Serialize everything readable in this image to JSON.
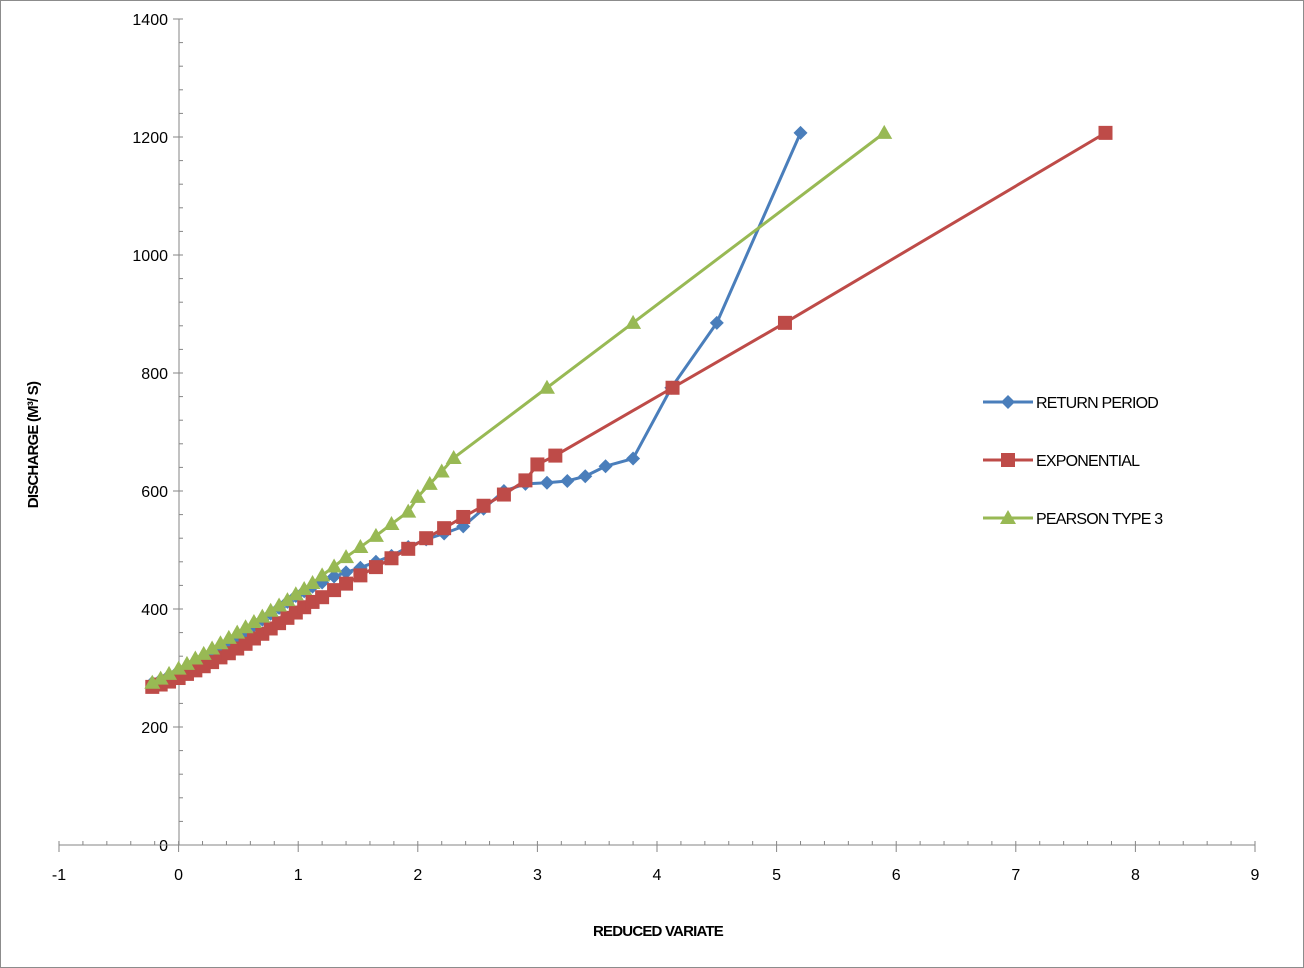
{
  "chart_data": {
    "type": "line",
    "title": "",
    "xlabel": "REDUCED VARIATE",
    "ylabel": "DISCHARGE (M³/ S)",
    "xlim": [
      -1,
      9
    ],
    "ylim": [
      0,
      1400
    ],
    "x_ticks": [
      -1,
      0,
      1,
      2,
      3,
      4,
      5,
      6,
      7,
      8,
      9
    ],
    "y_ticks": [
      0,
      200,
      400,
      600,
      800,
      1000,
      1200,
      1400
    ],
    "grid": false,
    "legend_position": "right",
    "series": [
      {
        "name": "RETURN PERIOD",
        "color": "#4a7ebb",
        "marker": "diamond",
        "x": [
          -0.22,
          -0.15,
          -0.08,
          0.0,
          0.07,
          0.14,
          0.21,
          0.28,
          0.35,
          0.42,
          0.49,
          0.56,
          0.63,
          0.7,
          0.77,
          0.84,
          0.91,
          0.98,
          1.05,
          1.12,
          1.2,
          1.3,
          1.4,
          1.52,
          1.65,
          1.78,
          1.92,
          2.07,
          2.22,
          2.38,
          2.55,
          2.72,
          2.9,
          3.08,
          3.25,
          3.4,
          3.57,
          3.8,
          4.12,
          4.5,
          5.2
        ],
        "y": [
          275,
          280,
          287,
          295,
          302,
          310,
          318,
          326,
          335,
          344,
          353,
          362,
          372,
          382,
          392,
          402,
          412,
          422,
          430,
          438,
          445,
          455,
          462,
          470,
          480,
          490,
          505,
          518,
          528,
          540,
          570,
          600,
          612,
          614,
          617,
          625,
          642,
          655,
          775,
          885,
          1207
        ]
      },
      {
        "name": "EXPONENTIAL",
        "color": "#be4b48",
        "marker": "square",
        "x": [
          -0.22,
          -0.15,
          -0.08,
          0.0,
          0.07,
          0.14,
          0.21,
          0.28,
          0.35,
          0.42,
          0.49,
          0.56,
          0.63,
          0.7,
          0.77,
          0.84,
          0.91,
          0.98,
          1.05,
          1.12,
          1.2,
          1.3,
          1.4,
          1.52,
          1.65,
          1.78,
          1.92,
          2.07,
          2.22,
          2.38,
          2.55,
          2.72,
          2.9,
          3.0,
          3.15,
          4.13,
          5.07,
          7.75
        ],
        "y": [
          268,
          272,
          277,
          283,
          290,
          296,
          303,
          310,
          318,
          325,
          333,
          341,
          350,
          358,
          367,
          376,
          385,
          394,
          403,
          412,
          420,
          432,
          443,
          457,
          471,
          486,
          502,
          520,
          537,
          556,
          575,
          594,
          618,
          645,
          660,
          775,
          885,
          1207
        ]
      },
      {
        "name": "PEARSON TYPE 3",
        "color": "#98b954",
        "marker": "triangle",
        "x": [
          -0.22,
          -0.15,
          -0.08,
          0.0,
          0.07,
          0.14,
          0.21,
          0.28,
          0.35,
          0.42,
          0.49,
          0.56,
          0.63,
          0.7,
          0.77,
          0.84,
          0.91,
          0.98,
          1.05,
          1.12,
          1.2,
          1.3,
          1.4,
          1.52,
          1.65,
          1.78,
          1.92,
          2.0,
          2.1,
          2.2,
          2.3,
          3.08,
          3.8,
          5.9
        ],
        "y": [
          275,
          282,
          290,
          299,
          307,
          316,
          324,
          333,
          342,
          351,
          360,
          369,
          378,
          387,
          397,
          406,
          415,
          425,
          434,
          444,
          457,
          472,
          488,
          505,
          524,
          544,
          565,
          590,
          612,
          633,
          656,
          775,
          885,
          1207
        ]
      }
    ]
  }
}
